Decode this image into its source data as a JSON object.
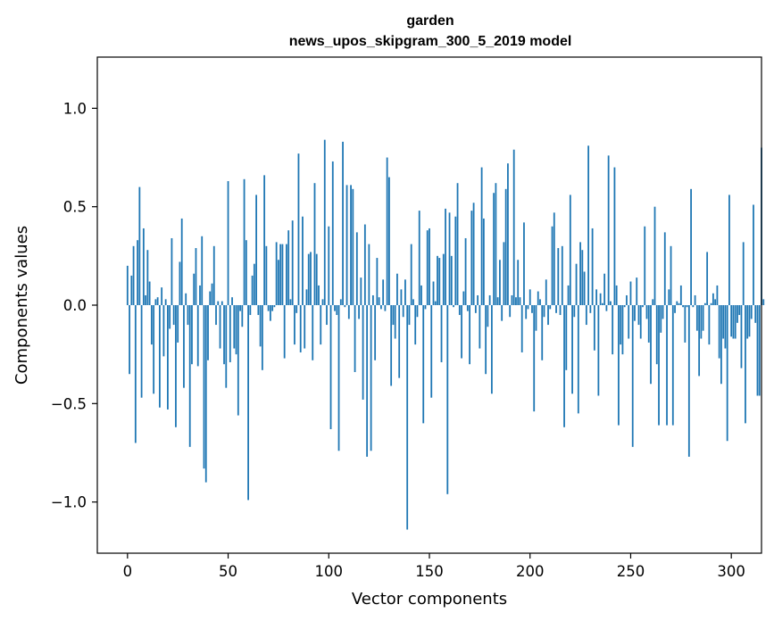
{
  "chart_data": {
    "type": "bar",
    "title": "garden",
    "subtitle": "news_upos_skipgram_300_5_2019 model",
    "xlabel": "Vector components",
    "ylabel": "Components values",
    "xlim": [
      -15,
      315
    ],
    "ylim": [
      -1.26,
      1.26
    ],
    "x_ticks": [
      0,
      50,
      100,
      150,
      200,
      250,
      300
    ],
    "x_tick_labels": [
      "0",
      "50",
      "100",
      "150",
      "200",
      "250",
      "300"
    ],
    "y_ticks": [
      -1.0,
      -0.5,
      0.0,
      0.5,
      1.0
    ],
    "y_tick_labels": [
      "−1.0",
      "−0.5",
      "0.0",
      "0.5",
      "1.0"
    ],
    "bar_color": "#1f77b4",
    "grid": false,
    "values": [
      0.2,
      -0.35,
      0.15,
      0.3,
      -0.7,
      0.33,
      0.6,
      -0.47,
      0.39,
      0.05,
      0.28,
      0.12,
      -0.2,
      -0.45,
      0.03,
      0.04,
      -0.52,
      0.09,
      -0.26,
      0.03,
      -0.53,
      -0.12,
      0.34,
      -0.1,
      -0.62,
      -0.19,
      0.22,
      0.44,
      -0.42,
      0.06,
      -0.1,
      -0.72,
      -0.3,
      0.16,
      0.29,
      -0.31,
      0.1,
      0.35,
      -0.83,
      -0.9,
      -0.28,
      0.07,
      0.11,
      0.3,
      -0.1,
      0.02,
      -0.22,
      0.02,
      -0.3,
      -0.42,
      0.63,
      -0.29,
      0.04,
      -0.22,
      -0.25,
      -0.56,
      -0.03,
      -0.11,
      0.64,
      0.33,
      -0.99,
      -0.05,
      0.15,
      0.21,
      0.56,
      -0.05,
      -0.21,
      -0.33,
      0.66,
      0.3,
      -0.03,
      -0.08,
      -0.03,
      -0.01,
      0.32,
      0.23,
      0.31,
      0.31,
      -0.27,
      0.31,
      0.38,
      0.03,
      0.43,
      -0.2,
      -0.04,
      0.77,
      -0.24,
      0.45,
      -0.22,
      0.08,
      0.26,
      0.27,
      -0.28,
      0.62,
      0.26,
      0.1,
      -0.2,
      0.03,
      0.84,
      -0.1,
      0.4,
      -0.63,
      0.73,
      -0.03,
      -0.05,
      -0.74,
      0.03,
      0.83,
      -0.01,
      0.61,
      -0.07,
      0.61,
      0.59,
      -0.34,
      0.37,
      -0.07,
      0.14,
      -0.48,
      0.41,
      -0.77,
      0.31,
      -0.74,
      0.05,
      -0.28,
      0.24,
      0.04,
      -0.02,
      0.13,
      -0.03,
      0.75,
      0.65,
      -0.41,
      -0.1,
      -0.17,
      0.16,
      -0.37,
      0.08,
      -0.06,
      0.13,
      -1.14,
      -0.1,
      0.31,
      0.03,
      -0.2,
      -0.06,
      0.48,
      0.1,
      -0.6,
      -0.02,
      0.38,
      0.39,
      -0.47,
      0.12,
      0.02,
      0.25,
      0.24,
      -0.29,
      0.26,
      0.49,
      -0.96,
      0.47,
      0.25,
      -0.01,
      0.45,
      0.62,
      -0.05,
      -0.27,
      0.07,
      0.34,
      -0.03,
      -0.3,
      0.48,
      0.52,
      -0.04,
      0.05,
      -0.22,
      0.7,
      0.44,
      -0.35,
      -0.11,
      0.05,
      -0.45,
      0.57,
      0.62,
      0.04,
      0.23,
      -0.08,
      0.32,
      0.59,
      0.72,
      -0.06,
      0.05,
      0.79,
      0.04,
      0.23,
      0.04,
      -0.24,
      0.42,
      -0.07,
      -0.02,
      0.08,
      -0.04,
      -0.54,
      -0.13,
      0.07,
      0.03,
      -0.28,
      -0.06,
      0.13,
      -0.1,
      -0.02,
      0.4,
      0.47,
      -0.04,
      0.29,
      -0.05,
      0.3,
      -0.62,
      -0.33,
      0.1,
      0.56,
      -0.45,
      -0.06,
      0.21,
      -0.55,
      0.32,
      0.28,
      0.17,
      -0.1,
      0.81,
      -0.04,
      0.39,
      -0.23,
      0.08,
      -0.46,
      0.06,
      0.01,
      0.16,
      -0.03,
      0.76,
      0.02,
      -0.25,
      0.7,
      0.1,
      -0.61,
      -0.2,
      -0.25,
      -0.01,
      0.05,
      -0.17,
      0.12,
      -0.72,
      -0.08,
      0.14,
      -0.1,
      -0.17,
      -0.01,
      0.4,
      -0.07,
      -0.19,
      -0.4,
      0.03,
      0.5,
      -0.3,
      -0.61,
      -0.14,
      -0.07,
      0.37,
      -0.61,
      0.08,
      0.3,
      -0.61,
      -0.04,
      0.02,
      0.01,
      0.1,
      -0.01,
      -0.19,
      -0.01,
      -0.77,
      0.59,
      -0.01,
      0.05,
      -0.13,
      -0.36,
      -0.17,
      -0.13,
      0.01,
      0.27,
      -0.2,
      0.01,
      0.06,
      0.03,
      0.1,
      -0.27,
      -0.4,
      -0.17,
      -0.22,
      -0.69,
      0.56,
      -0.16,
      -0.17,
      -0.17,
      -0.09,
      -0.05,
      -0.32,
      0.32,
      -0.6,
      -0.17,
      -0.16,
      -0.07,
      0.51,
      -0.09,
      -0.46,
      -0.46,
      0.8,
      0.03
    ]
  }
}
